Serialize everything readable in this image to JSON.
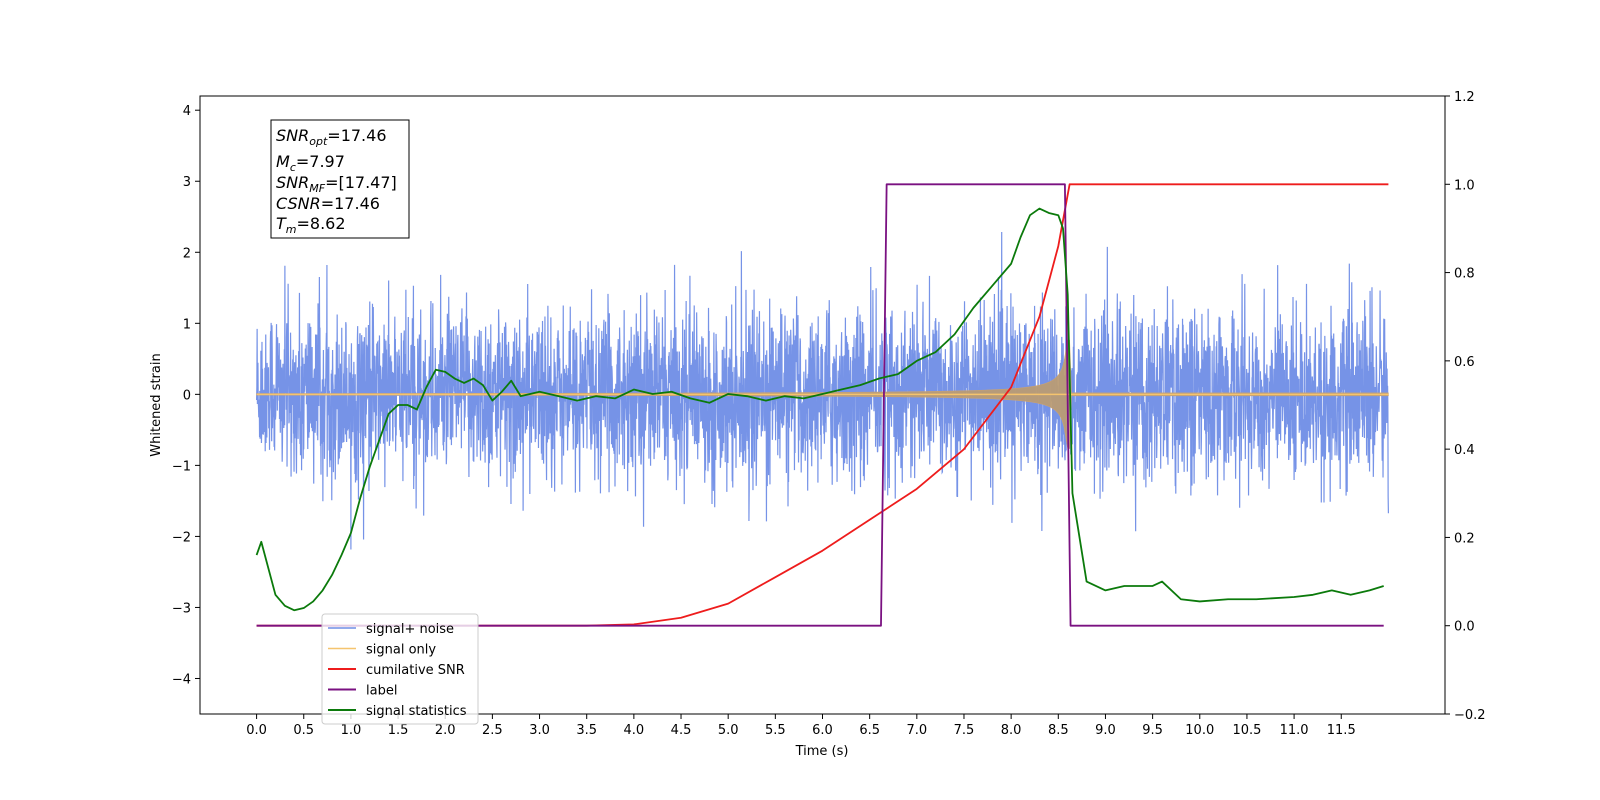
{
  "chart_data": {
    "type": "line",
    "title": "",
    "xlabel": "Time (s)",
    "ylabel": "Whitened strain",
    "y2label": "",
    "xlim": [
      -0.6,
      12.6
    ],
    "ylim": [
      -4.5,
      4.2
    ],
    "y2lim": [
      -0.2,
      1.2
    ],
    "x_ticks": [
      "0.0",
      "0.5",
      "1.0",
      "1.5",
      "2.0",
      "2.5",
      "3.0",
      "3.5",
      "4.0",
      "4.5",
      "5.0",
      "5.5",
      "6.0",
      "6.5",
      "7.0",
      "7.5",
      "8.0",
      "8.5",
      "9.0",
      "9.5",
      "10.0",
      "10.5",
      "11.0",
      "11.5"
    ],
    "y_ticks": [
      "4",
      "3",
      "2",
      "1",
      "0",
      "−1",
      "−2",
      "−3",
      "−4"
    ],
    "y2_ticks": [
      "1.2",
      "1.0",
      "0.8",
      "0.6",
      "0.4",
      "0.2",
      "0.0",
      "−0.2"
    ],
    "grid": false,
    "legend_position": "lower-left",
    "info_box": {
      "snr_opt": {
        "base": "SNR",
        "sub": "opt",
        "value": "=17.46"
      },
      "mc": {
        "base": "M",
        "sub": "c",
        "value": "=7.97"
      },
      "snr_mf": {
        "base": "SNR",
        "sub": "MF",
        "value": "=[17.47]"
      },
      "csnr": {
        "base": "CSNR",
        "value": "=17.46"
      },
      "tm": {
        "base": "T",
        "sub": "m",
        "value": "=8.62"
      }
    },
    "series": [
      {
        "name": "signal+ noise",
        "color": "#6f8de6",
        "axis": "left",
        "style": "noise",
        "noise_sigma": 0.9,
        "x_range": [
          0.0,
          12.0
        ]
      },
      {
        "name": "signal only",
        "color": "#f5c46e",
        "axis": "left",
        "style": "chirp",
        "t_merge": 8.62,
        "x_range": [
          0.0,
          12.0
        ]
      },
      {
        "name": "cumilative SNR",
        "color": "#ee1c1c",
        "axis": "right",
        "x": [
          0.0,
          3.5,
          4.0,
          4.5,
          5.0,
          5.5,
          6.0,
          6.5,
          7.0,
          7.5,
          8.0,
          8.3,
          8.5,
          8.62,
          12.0
        ],
        "y": [
          0.0,
          0.0,
          0.003,
          0.018,
          0.05,
          0.11,
          0.17,
          0.24,
          0.31,
          0.4,
          0.54,
          0.7,
          0.86,
          1.0,
          1.0
        ]
      },
      {
        "name": "label",
        "color": "#7a1181",
        "axis": "right",
        "x": [
          0.0,
          6.62,
          6.68,
          8.57,
          8.63,
          11.95
        ],
        "y": [
          0.0,
          0.0,
          1.0,
          1.0,
          0.0,
          0.0
        ]
      },
      {
        "name": "signal statistics",
        "color": "#0b7a0b",
        "axis": "right",
        "x": [
          0.0,
          0.05,
          0.1,
          0.2,
          0.3,
          0.4,
          0.5,
          0.6,
          0.7,
          0.8,
          0.9,
          1.0,
          1.1,
          1.2,
          1.3,
          1.4,
          1.5,
          1.6,
          1.7,
          1.8,
          1.9,
          2.0,
          2.1,
          2.2,
          2.3,
          2.4,
          2.5,
          2.6,
          2.7,
          2.8,
          2.9,
          3.0,
          3.2,
          3.4,
          3.6,
          3.8,
          4.0,
          4.2,
          4.4,
          4.6,
          4.8,
          5.0,
          5.2,
          5.4,
          5.6,
          5.8,
          6.0,
          6.2,
          6.4,
          6.6,
          6.8,
          7.0,
          7.2,
          7.4,
          7.6,
          7.8,
          8.0,
          8.1,
          8.2,
          8.3,
          8.4,
          8.5,
          8.55,
          8.6,
          8.65,
          8.8,
          9.0,
          9.2,
          9.5,
          9.6,
          9.8,
          10.0,
          10.3,
          10.6,
          11.0,
          11.2,
          11.4,
          11.6,
          11.8,
          11.95
        ],
        "y": [
          0.16,
          0.19,
          0.15,
          0.07,
          0.045,
          0.035,
          0.04,
          0.055,
          0.08,
          0.115,
          0.16,
          0.21,
          0.29,
          0.36,
          0.42,
          0.48,
          0.5,
          0.5,
          0.49,
          0.54,
          0.58,
          0.575,
          0.56,
          0.55,
          0.56,
          0.545,
          0.51,
          0.53,
          0.555,
          0.52,
          0.525,
          0.53,
          0.52,
          0.51,
          0.52,
          0.515,
          0.535,
          0.525,
          0.53,
          0.515,
          0.505,
          0.525,
          0.52,
          0.51,
          0.52,
          0.515,
          0.525,
          0.535,
          0.545,
          0.56,
          0.57,
          0.6,
          0.62,
          0.66,
          0.72,
          0.77,
          0.82,
          0.88,
          0.93,
          0.945,
          0.935,
          0.93,
          0.9,
          0.75,
          0.3,
          0.1,
          0.08,
          0.09,
          0.09,
          0.1,
          0.06,
          0.055,
          0.06,
          0.06,
          0.065,
          0.07,
          0.08,
          0.07,
          0.08,
          0.09
        ]
      }
    ]
  }
}
